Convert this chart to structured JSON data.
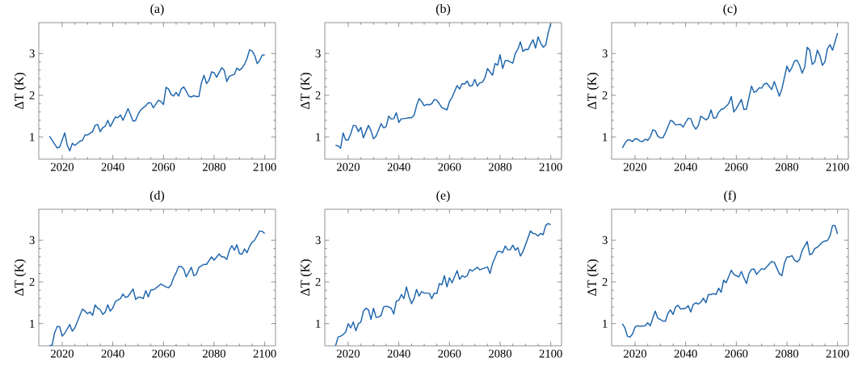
{
  "chart_data": [
    {
      "type": "line",
      "title": "(a)",
      "ylabel": "ΔT (K)",
      "color": "#1f66ad",
      "xlim": [
        2010.75,
        2104.25
      ],
      "ylim": [
        0.47,
        3.74
      ],
      "xticks": [
        2020,
        2040,
        2060,
        2080,
        2100
      ],
      "yticks": [
        1,
        2,
        3
      ],
      "x": [
        2015,
        2018,
        2019,
        2021,
        2022,
        2023,
        2024,
        2025,
        2027,
        2028,
        2029,
        2030,
        2032,
        2033,
        2034,
        2035,
        2036,
        2037,
        2038,
        2039,
        2041,
        2042,
        2043,
        2044,
        2046,
        2048,
        2049,
        2050,
        2051,
        2053,
        2054,
        2055,
        2056,
        2058,
        2059,
        2060,
        2061,
        2062,
        2063,
        2064,
        2065,
        2066,
        2067,
        2068,
        2069,
        2070,
        2071,
        2072,
        2073,
        2074,
        2075,
        2076,
        2077,
        2078,
        2079,
        2080,
        2081,
        2083,
        2084,
        2085,
        2086,
        2087,
        2088,
        2089,
        2090,
        2091,
        2092,
        2093,
        2094,
        2095,
        2096,
        2097,
        2098,
        2099,
        2100
      ],
      "values": [
        1.02,
        0.74,
        0.76,
        1.1,
        0.8,
        0.67,
        0.85,
        0.8,
        0.9,
        0.92,
        1.05,
        1.05,
        1.13,
        1.28,
        1.3,
        1.13,
        1.22,
        1.26,
        1.4,
        1.25,
        1.48,
        1.46,
        1.53,
        1.4,
        1.68,
        1.38,
        1.4,
        1.55,
        1.65,
        1.75,
        1.82,
        1.82,
        1.7,
        1.88,
        1.85,
        1.78,
        2.19,
        2.15,
        2.02,
        1.98,
        2.07,
        1.98,
        2.15,
        2.2,
        2.1,
        1.98,
        1.96,
        1.99,
        1.97,
        1.97,
        2.3,
        2.48,
        2.28,
        2.36,
        2.56,
        2.54,
        2.43,
        2.66,
        2.6,
        2.33,
        2.45,
        2.48,
        2.5,
        2.65,
        2.6,
        2.65,
        2.74,
        2.88,
        3.09,
        3.06,
        2.96,
        2.76,
        2.83,
        2.96,
        2.97
      ]
    },
    {
      "type": "line",
      "title": "(b)",
      "ylabel": "ΔT (K)",
      "color": "#1f66ad",
      "xlim": [
        2010.75,
        2104.25
      ],
      "ylim": [
        0.47,
        3.74
      ],
      "xticks": [
        2020,
        2040,
        2060,
        2080,
        2100
      ],
      "yticks": [
        1,
        2,
        3
      ],
      "x": [
        2015,
        2016,
        2017,
        2018,
        2019,
        2020,
        2021,
        2022,
        2023,
        2024,
        2025,
        2026,
        2028,
        2029,
        2030,
        2031,
        2033,
        2034,
        2035,
        2036,
        2037,
        2038,
        2039,
        2040,
        2041,
        2042,
        2044,
        2045,
        2046,
        2047,
        2048,
        2049,
        2050,
        2051,
        2052,
        2053,
        2054,
        2055,
        2056,
        2057,
        2058,
        2059,
        2060,
        2061,
        2063,
        2064,
        2065,
        2066,
        2067,
        2068,
        2069,
        2070,
        2071,
        2072,
        2073,
        2074,
        2075,
        2076,
        2077,
        2078,
        2079,
        2080,
        2081,
        2082,
        2083,
        2084,
        2085,
        2086,
        2087,
        2088,
        2089,
        2090,
        2091,
        2092,
        2093,
        2094,
        2095,
        2096,
        2097,
        2098,
        2099,
        2100
      ],
      "values": [
        0.8,
        0.79,
        0.73,
        1.1,
        0.93,
        0.93,
        1.08,
        1.28,
        1.27,
        1.13,
        1.23,
        0.98,
        1.28,
        1.15,
        0.96,
        1.02,
        1.32,
        1.22,
        1.25,
        1.5,
        1.43,
        1.44,
        1.58,
        1.35,
        1.44,
        1.44,
        1.46,
        1.46,
        1.52,
        1.75,
        1.92,
        1.85,
        1.75,
        1.78,
        1.77,
        1.8,
        1.9,
        1.88,
        1.8,
        1.7,
        1.68,
        1.65,
        1.85,
        1.95,
        2.23,
        2.15,
        2.28,
        2.27,
        2.34,
        2.22,
        2.23,
        2.38,
        2.22,
        2.3,
        2.31,
        2.42,
        2.64,
        2.56,
        2.48,
        2.76,
        2.72,
        2.97,
        2.64,
        2.83,
        2.83,
        2.8,
        2.77,
        3.0,
        3.1,
        3.28,
        3.05,
        3.1,
        3.09,
        3.22,
        3.33,
        3.13,
        3.4,
        3.25,
        3.15,
        3.2,
        3.5,
        3.72
      ]
    },
    {
      "type": "line",
      "title": "(c)",
      "ylabel": "ΔT (K)",
      "color": "#1f66ad",
      "xlim": [
        2010.75,
        2104.25
      ],
      "ylim": [
        0.47,
        3.74
      ],
      "xticks": [
        2020,
        2040,
        2060,
        2080,
        2100
      ],
      "yticks": [
        1,
        2,
        3
      ],
      "x": [
        2015,
        2016,
        2017,
        2018,
        2019,
        2020,
        2021,
        2022,
        2023,
        2024,
        2025,
        2026,
        2027,
        2028,
        2029,
        2030,
        2031,
        2032,
        2034,
        2035,
        2036,
        2038,
        2039,
        2040,
        2041,
        2042,
        2043,
        2044,
        2045,
        2046,
        2048,
        2049,
        2050,
        2051,
        2052,
        2053,
        2054,
        2055,
        2057,
        2058,
        2059,
        2060,
        2062,
        2063,
        2064,
        2066,
        2067,
        2068,
        2069,
        2070,
        2071,
        2072,
        2074,
        2075,
        2077,
        2078,
        2080,
        2081,
        2082,
        2083,
        2084,
        2085,
        2086,
        2087,
        2088,
        2089,
        2090,
        2091,
        2092,
        2093,
        2094,
        2095,
        2096,
        2097,
        2098,
        2100
      ],
      "values": [
        0.74,
        0.85,
        0.93,
        0.93,
        0.89,
        0.96,
        0.95,
        0.9,
        0.89,
        0.95,
        0.92,
        1.0,
        1.17,
        1.15,
        1.02,
        0.98,
        0.98,
        1.1,
        1.4,
        1.37,
        1.29,
        1.3,
        1.24,
        1.35,
        1.45,
        1.44,
        1.28,
        1.19,
        1.27,
        1.5,
        1.41,
        1.46,
        1.65,
        1.45,
        1.46,
        1.59,
        1.66,
        1.68,
        1.8,
        1.97,
        1.6,
        1.68,
        1.9,
        1.66,
        1.67,
        2.22,
        2.07,
        2.1,
        2.18,
        2.17,
        2.27,
        2.29,
        2.14,
        2.33,
        1.98,
        2.15,
        2.7,
        2.56,
        2.67,
        2.82,
        2.84,
        2.72,
        2.53,
        2.67,
        3.15,
        3.08,
        2.74,
        2.8,
        3.08,
        2.95,
        2.72,
        2.8,
        3.12,
        3.21,
        3.08,
        3.49
      ]
    },
    {
      "type": "line",
      "title": "(d)",
      "ylabel": "ΔT (K)",
      "color": "#1f66ad",
      "xlim": [
        2010.75,
        2104.25
      ],
      "ylim": [
        0.47,
        3.74
      ],
      "xticks": [
        2020,
        2040,
        2060,
        2080,
        2100
      ],
      "yticks": [
        1,
        2,
        3
      ],
      "x": [
        2015,
        2016,
        2017,
        2018,
        2019,
        2020,
        2021,
        2023,
        2024,
        2025,
        2028,
        2029,
        2030,
        2031,
        2032,
        2033,
        2034,
        2035,
        2036,
        2037,
        2038,
        2039,
        2040,
        2041,
        2043,
        2044,
        2045,
        2046,
        2048,
        2049,
        2050,
        2051,
        2052,
        2053,
        2054,
        2055,
        2056,
        2057,
        2059,
        2061,
        2062,
        2063,
        2064,
        2065,
        2066,
        2067,
        2068,
        2069,
        2071,
        2072,
        2073,
        2074,
        2076,
        2077,
        2079,
        2080,
        2082,
        2083,
        2084,
        2085,
        2086,
        2087,
        2088,
        2089,
        2090,
        2091,
        2092,
        2093,
        2094,
        2095,
        2096,
        2098,
        2099,
        2100
      ],
      "values": [
        0.48,
        0.48,
        0.78,
        0.93,
        0.93,
        0.7,
        0.77,
        0.98,
        0.82,
        0.9,
        1.35,
        1.3,
        1.24,
        1.28,
        1.2,
        1.45,
        1.37,
        1.34,
        1.22,
        1.28,
        1.45,
        1.3,
        1.38,
        1.53,
        1.6,
        1.71,
        1.63,
        1.65,
        1.83,
        1.58,
        1.63,
        1.63,
        1.6,
        1.79,
        1.64,
        1.81,
        1.81,
        1.85,
        1.95,
        1.88,
        1.86,
        1.93,
        2.1,
        2.22,
        2.37,
        2.37,
        2.31,
        2.12,
        2.35,
        2.15,
        2.18,
        2.35,
        2.42,
        2.42,
        2.6,
        2.52,
        2.67,
        2.6,
        2.6,
        2.54,
        2.75,
        2.87,
        2.76,
        2.89,
        2.68,
        2.66,
        2.79,
        2.7,
        2.85,
        2.95,
        3.0,
        3.22,
        3.21,
        3.16
      ]
    },
    {
      "type": "line",
      "title": "(e)",
      "ylabel": "ΔT (K)",
      "color": "#1f66ad",
      "xlim": [
        2010.75,
        2104.25
      ],
      "ylim": [
        0.47,
        3.74
      ],
      "xticks": [
        2020,
        2040,
        2060,
        2080,
        2100
      ],
      "yticks": [
        1,
        2,
        3
      ],
      "x": [
        2015,
        2016,
        2017,
        2018,
        2019,
        2020,
        2021,
        2022,
        2023,
        2024,
        2025,
        2026,
        2027,
        2028,
        2029,
        2030,
        2031,
        2032,
        2033,
        2034,
        2035,
        2036,
        2037,
        2038,
        2039,
        2040,
        2041,
        2042,
        2043,
        2044,
        2045,
        2046,
        2047,
        2048,
        2049,
        2050,
        2052,
        2053,
        2054,
        2055,
        2056,
        2057,
        2058,
        2059,
        2060,
        2061,
        2063,
        2064,
        2065,
        2066,
        2067,
        2068,
        2069,
        2071,
        2072,
        2075,
        2076,
        2077,
        2079,
        2080,
        2081,
        2082,
        2083,
        2084,
        2085,
        2086,
        2087,
        2088,
        2089,
        2092,
        2093,
        2094,
        2095,
        2096,
        2097,
        2098,
        2099,
        2100
      ],
      "values": [
        0.47,
        0.68,
        0.7,
        0.74,
        0.8,
        1.0,
        0.9,
        1.04,
        0.83,
        1.0,
        1.04,
        1.3,
        1.37,
        1.33,
        1.1,
        1.37,
        1.15,
        1.16,
        1.2,
        1.4,
        1.42,
        1.4,
        1.37,
        1.23,
        1.54,
        1.56,
        1.7,
        1.6,
        1.88,
        1.65,
        1.48,
        1.6,
        1.82,
        1.66,
        1.77,
        1.73,
        1.73,
        1.6,
        1.73,
        1.72,
        1.96,
        1.93,
        2.15,
        1.88,
        2.1,
        1.98,
        2.27,
        2.06,
        2.15,
        2.11,
        2.15,
        2.3,
        2.26,
        2.35,
        2.29,
        2.36,
        2.2,
        2.44,
        2.73,
        2.73,
        2.7,
        2.86,
        2.77,
        2.77,
        2.88,
        2.76,
        2.82,
        2.62,
        2.72,
        3.22,
        3.16,
        3.15,
        3.1,
        3.16,
        3.13,
        3.35,
        3.4,
        3.37
      ]
    },
    {
      "type": "line",
      "title": "(f)",
      "ylabel": "ΔT (K)",
      "color": "#1f66ad",
      "xlim": [
        2010.75,
        2104.25
      ],
      "ylim": [
        0.47,
        3.74
      ],
      "xticks": [
        2020,
        2040,
        2060,
        2080,
        2100
      ],
      "yticks": [
        1,
        2,
        3
      ],
      "x": [
        2015,
        2016,
        2017,
        2018,
        2019,
        2020,
        2021,
        2022,
        2024,
        2025,
        2026,
        2028,
        2029,
        2030,
        2031,
        2032,
        2033,
        2034,
        2035,
        2036,
        2037,
        2038,
        2040,
        2041,
        2042,
        2043,
        2044,
        2045,
        2046,
        2047,
        2048,
        2049,
        2050,
        2051,
        2052,
        2053,
        2054,
        2055,
        2056,
        2058,
        2059,
        2061,
        2062,
        2063,
        2064,
        2065,
        2066,
        2067,
        2068,
        2070,
        2071,
        2072,
        2074,
        2075,
        2076,
        2077,
        2078,
        2079,
        2080,
        2081,
        2082,
        2083,
        2084,
        2085,
        2086,
        2088,
        2089,
        2090,
        2091,
        2092,
        2094,
        2095,
        2096,
        2097,
        2098,
        2099,
        2100
      ],
      "values": [
        1.0,
        0.9,
        0.7,
        0.68,
        0.75,
        0.92,
        0.95,
        0.94,
        0.95,
        1.02,
        0.95,
        1.3,
        1.13,
        1.1,
        1.06,
        1.06,
        1.25,
        1.33,
        1.22,
        1.4,
        1.44,
        1.35,
        1.37,
        1.43,
        1.28,
        1.46,
        1.5,
        1.47,
        1.52,
        1.61,
        1.5,
        1.7,
        1.7,
        1.72,
        1.7,
        1.85,
        1.75,
        2.04,
        1.98,
        2.28,
        2.18,
        2.12,
        2.25,
        2.1,
        1.96,
        2.2,
        2.3,
        2.31,
        2.18,
        2.32,
        2.3,
        2.36,
        2.49,
        2.47,
        2.33,
        2.2,
        2.15,
        2.45,
        2.6,
        2.6,
        2.63,
        2.52,
        2.48,
        2.54,
        2.75,
        2.97,
        2.65,
        2.68,
        2.8,
        2.83,
        2.95,
        2.98,
        2.99,
        3.1,
        3.35,
        3.35,
        3.15
      ]
    }
  ]
}
